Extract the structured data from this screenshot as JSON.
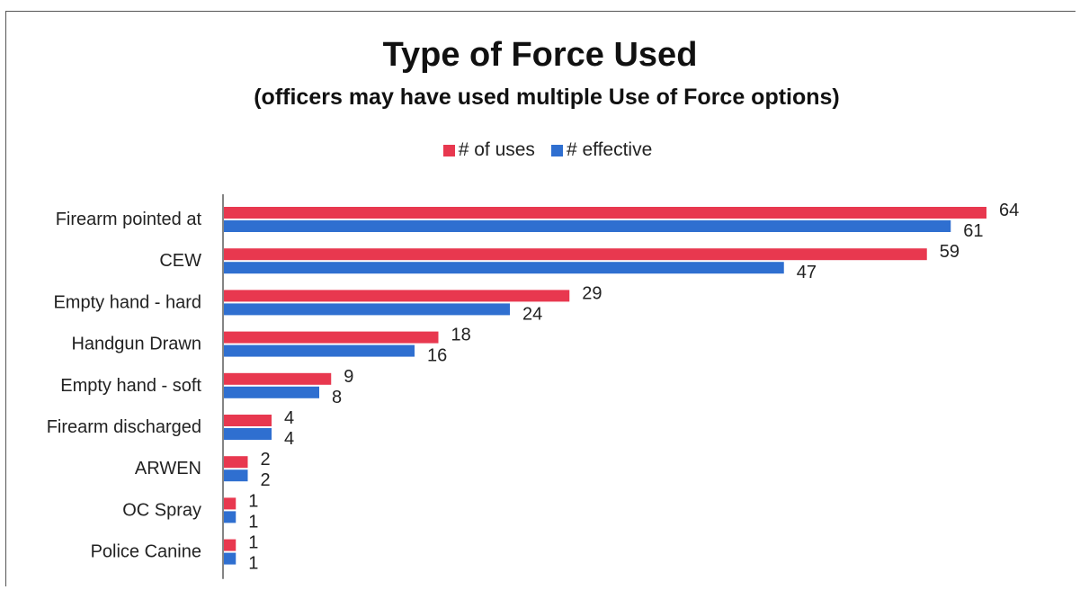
{
  "chart_data": {
    "type": "bar",
    "orientation": "horizontal",
    "title": "Type of Force Used",
    "subtitle": "(officers may have used multiple Use of Force options)",
    "categories": [
      "Firearm pointed at",
      "CEW",
      "Empty hand - hard",
      "Handgun Drawn",
      "Empty hand - soft",
      "Firearm discharged",
      "ARWEN",
      "OC Spray",
      "Police Canine"
    ],
    "series": [
      {
        "name": "# of uses",
        "color": "#e8384f",
        "values": [
          64,
          59,
          29,
          18,
          9,
          4,
          2,
          1,
          1
        ]
      },
      {
        "name": "# effective",
        "color": "#2f6fd0",
        "values": [
          61,
          47,
          24,
          16,
          8,
          4,
          2,
          1,
          1
        ]
      }
    ],
    "xlim": [
      0,
      64
    ],
    "grid": false,
    "legend_position": "top"
  }
}
